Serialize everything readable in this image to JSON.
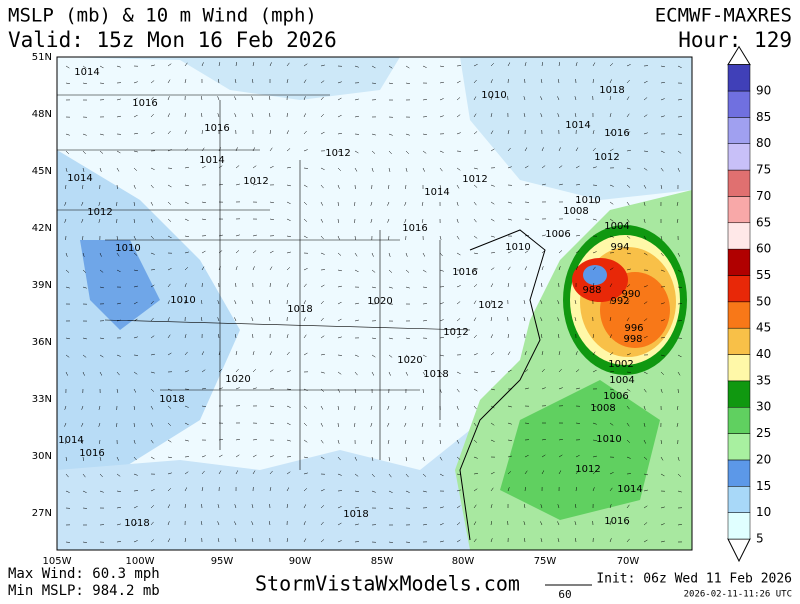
{
  "header": {
    "title": "MSLP (mb) & 10 m Wind (mph)",
    "valid": "Valid: 15z Mon 16 Feb 2026",
    "model": "ECMWF-MAXRES",
    "hour": "Hour: 129"
  },
  "lat_labels": [
    "51N",
    "48N",
    "45N",
    "42N",
    "39N",
    "36N",
    "33N",
    "30N",
    "27N"
  ],
  "lon_labels": [
    "105W",
    "100W",
    "95W",
    "90W",
    "85W",
    "80W",
    "75W",
    "70W"
  ],
  "isobar_labels": [
    1014,
    1016,
    1016,
    1014,
    1012,
    1014,
    1012,
    1010,
    1010,
    1018,
    1020,
    1016,
    1012,
    1012,
    1020,
    1018,
    1020,
    1018,
    1014,
    1016,
    1018,
    1018,
    1010,
    1018,
    1014,
    1016,
    1012,
    1012,
    1014,
    1012,
    1010,
    1008,
    1006,
    1010,
    988,
    990,
    992,
    996,
    998,
    1002,
    1004,
    1006,
    1008,
    1010,
    1012,
    1014,
    1016,
    1016,
    1004,
    994
  ],
  "colorbar": {
    "levels": [
      5,
      10,
      15,
      20,
      25,
      30,
      35,
      40,
      45,
      50,
      55,
      60,
      65,
      70,
      75,
      80,
      85,
      90
    ],
    "colors": [
      "#e0ffff",
      "#a8d8f8",
      "#5c98e8",
      "#a8f0a0",
      "#60d060",
      "#109810",
      "#fff8a8",
      "#f8c048",
      "#f87818",
      "#e82808",
      "#b00000",
      "#ffe8e8",
      "#f8a8a8",
      "#e07070",
      "#c8c0f8",
      "#a0a0f0",
      "#7070e0",
      "#4040b8"
    ]
  },
  "footer": {
    "max_wind": "Max Wind: 60.3 mph",
    "min_mslp": "Min MSLP: 984.2 mb",
    "site": "StormVistaWxModels.com",
    "scale": "60",
    "init": "Init: 06z Wed 11 Feb 2026",
    "stamp": "2026-02-11-11:26 UTC"
  }
}
